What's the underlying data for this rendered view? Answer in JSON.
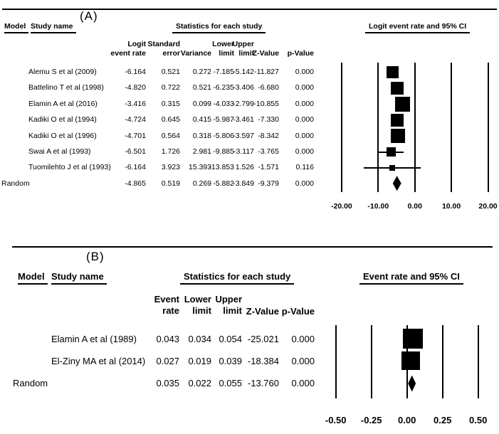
{
  "figure": {
    "background": "#ffffff",
    "ink": "#000000"
  },
  "panel_a": {
    "label": "(A)",
    "header": {
      "model": "Model",
      "study": "Study name",
      "stats": "Statistics for each study"
    },
    "stat_columns": [
      [
        "Logit",
        "event rate"
      ],
      [
        "Standard",
        "error"
      ],
      [
        "Variance"
      ],
      [
        "Lower",
        "limit"
      ],
      [
        "Upper",
        "limit"
      ],
      [
        "Z-Value"
      ],
      [
        "p-Value"
      ]
    ],
    "rows": [
      {
        "model": "",
        "study": "Alemu S et al (2009)",
        "cells": [
          "-6.164",
          "0.521",
          "0.272",
          "-7.185",
          "-5.142",
          "-11.827",
          "0.000"
        ]
      },
      {
        "model": "",
        "study": "Battelino T et al (1998)",
        "cells": [
          "-4.820",
          "0.722",
          "0.521",
          "-6.235",
          "-3.406",
          "-6.680",
          "0.000"
        ]
      },
      {
        "model": "",
        "study": "Elamin A et al (2016)",
        "cells": [
          "-3.416",
          "0.315",
          "0.099",
          "-4.033",
          "-2.799",
          "-10.855",
          "0.000"
        ]
      },
      {
        "model": "",
        "study": "Kadiki O et al (1994)",
        "cells": [
          "-4.724",
          "0.645",
          "0.415",
          "-5.987",
          "-3.461",
          "-7.330",
          "0.000"
        ]
      },
      {
        "model": "",
        "study": "Kadiki O et al (1996)",
        "cells": [
          "-4.701",
          "0.564",
          "0.318",
          "-5.806",
          "-3.597",
          "-8.342",
          "0.000"
        ]
      },
      {
        "model": "",
        "study": "Swai A et al (1993)",
        "cells": [
          "-6.501",
          "1.726",
          "2.981",
          "-9.885",
          "-3.117",
          "-3.765",
          "0.000"
        ]
      },
      {
        "model": "",
        "study": "Tuomilehto J et al (1993)",
        "cells": [
          "-6.164",
          "3.923",
          "15.393",
          "-13.853",
          "1.526",
          "-1.571",
          "0.116"
        ]
      },
      {
        "model": "Random",
        "study": "",
        "cells": [
          "-4.865",
          "0.519",
          "0.269",
          "-5.882",
          "-3.849",
          "-9.379",
          "0.000"
        ]
      }
    ]
  },
  "panel_b": {
    "label": "(B)",
    "header": {
      "model": "Model",
      "study": "Study name",
      "stats": "Statistics for each study"
    },
    "stat_columns": [
      [
        "Event",
        "rate"
      ],
      [
        "Lower",
        "limit"
      ],
      [
        "Upper",
        "limit"
      ],
      [
        "Z-Value"
      ],
      [
        "p-Value"
      ]
    ],
    "rows": [
      {
        "model": "",
        "study": "Elamin A et al (1989)",
        "cells": [
          "0.043",
          "0.034",
          "0.054",
          "-25.021",
          "0.000"
        ]
      },
      {
        "model": "",
        "study": "El-Ziny MA et al (2014)",
        "cells": [
          "0.027",
          "0.019",
          "0.039",
          "-18.384",
          "0.000"
        ]
      },
      {
        "model": "Random",
        "study": "",
        "cells": [
          "0.035",
          "0.022",
          "0.055",
          "-13.760",
          "0.000"
        ]
      }
    ]
  },
  "chart_data": [
    {
      "panel": "A",
      "type": "forest",
      "title": "Logit event rate and 95% CI",
      "x_axis_label": "",
      "xlim": [
        -20,
        20
      ],
      "xticks": [
        -20,
        -10,
        0,
        10,
        20
      ],
      "xtick_labels": [
        "-20.00",
        "-10.00",
        "0.00",
        "10.00",
        "20.00"
      ],
      "grid": "vertical-lines",
      "studies": [
        {
          "name": "Alemu S et al (2009)",
          "point": -6.164,
          "lower": -7.185,
          "upper": -5.142,
          "marker": "square",
          "size": 17
        },
        {
          "name": "Battelino T et al (1998)",
          "point": -4.82,
          "lower": -6.235,
          "upper": -3.406,
          "marker": "square",
          "size": 18
        },
        {
          "name": "Elamin A et al (2016)",
          "point": -3.416,
          "lower": -4.033,
          "upper": -2.799,
          "marker": "square",
          "size": 21
        },
        {
          "name": "Kadiki O et al (1994)",
          "point": -4.724,
          "lower": -5.987,
          "upper": -3.461,
          "marker": "square",
          "size": 18
        },
        {
          "name": "Kadiki O et al (1996)",
          "point": -4.701,
          "lower": -5.806,
          "upper": -3.597,
          "marker": "square",
          "size": 20
        },
        {
          "name": "Swai A et al (1993)",
          "point": -6.501,
          "lower": -9.885,
          "upper": -3.117,
          "marker": "square",
          "size": 13
        },
        {
          "name": "Tuomilehto J et al (1993)",
          "point": -6.164,
          "lower": -13.853,
          "upper": 1.526,
          "marker": "square",
          "size": 8
        }
      ],
      "summary": {
        "name": "Random",
        "point": -4.865,
        "lower": -5.882,
        "upper": -3.849,
        "marker": "diamond",
        "diamond_w": 12,
        "diamond_h": 21
      }
    },
    {
      "panel": "B",
      "type": "forest",
      "title": "Event rate and 95% CI",
      "x_axis_label": "",
      "xlim": [
        -0.5,
        0.5
      ],
      "xticks": [
        -0.5,
        -0.25,
        0,
        0.25,
        0.5
      ],
      "xtick_labels": [
        "-0.50",
        "-0.25",
        "0.00",
        "0.25",
        "0.50"
      ],
      "grid": "vertical-lines",
      "studies": [
        {
          "name": "Elamin A et al (1989)",
          "point": 0.043,
          "lower": 0.034,
          "upper": 0.054,
          "marker": "square",
          "size": 28
        },
        {
          "name": "El-Ziny MA et al (2014)",
          "point": 0.027,
          "lower": 0.019,
          "upper": 0.039,
          "marker": "square",
          "size": 26
        }
      ],
      "summary": {
        "name": "Random",
        "point": 0.035,
        "lower": 0.022,
        "upper": 0.055,
        "marker": "diamond",
        "diamond_w": 11,
        "diamond_h": 23
      }
    }
  ]
}
